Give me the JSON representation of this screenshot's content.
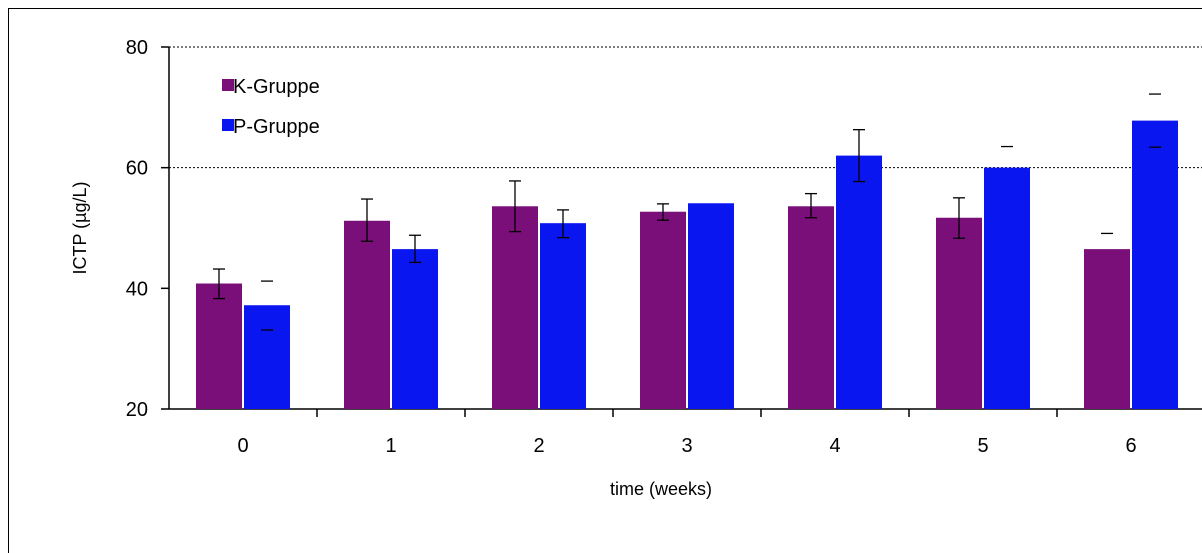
{
  "chart_data": {
    "type": "bar",
    "categories": [
      "0",
      "1",
      "2",
      "3",
      "4",
      "5",
      "6"
    ],
    "series": [
      {
        "name": "K-Gruppe",
        "color": "#7a0f7a",
        "values": [
          40.8,
          51.2,
          53.6,
          52.7,
          53.6,
          51.7,
          46.5
        ],
        "error_low": [
          38.3,
          47.8,
          49.4,
          51.3,
          51.7,
          48.3,
          46.5
        ],
        "error_high": [
          43.2,
          54.8,
          57.8,
          54.0,
          55.7,
          55.0,
          49.1
        ]
      },
      {
        "name": "P-Gruppe",
        "color": "#0a16f0",
        "values": [
          37.2,
          46.5,
          50.8,
          54.1,
          62.0,
          60.0,
          67.8
        ],
        "error_low": [
          33.1,
          44.3,
          48.4,
          54.1,
          57.7,
          60.0,
          63.4
        ],
        "error_high": [
          41.2,
          48.8,
          53.0,
          54.1,
          66.3,
          63.5,
          72.2
        ]
      }
    ],
    "title": "",
    "xlabel": "time (weeks)",
    "ylabel": "ICTP (µg/L)",
    "ylim": [
      20,
      80
    ],
    "yticks": [
      20,
      40,
      60,
      80
    ],
    "gridlines": [
      60,
      80
    ],
    "legend_position": "top-left"
  }
}
